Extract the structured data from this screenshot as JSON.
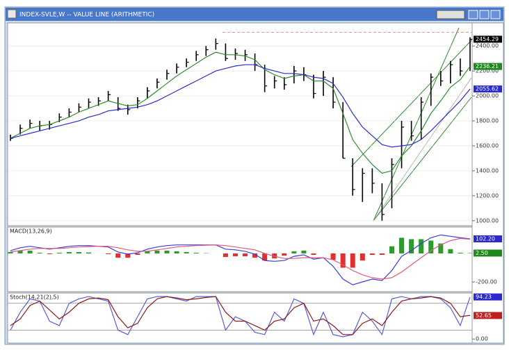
{
  "chart_data": [
    {
      "type": "hlc",
      "title": "INDEX-SVLE,W -- VALUE LINE (ARITHMETIC)",
      "ylim": [
        960,
        2585
      ],
      "yticks": [
        {
          "value": 1000,
          "label": "1000.00"
        },
        {
          "value": 1200,
          "label": "1200.00"
        },
        {
          "value": 1400,
          "label": "1400.00"
        },
        {
          "value": 1600,
          "label": "1600.00"
        },
        {
          "value": 1800,
          "label": "1800.00"
        },
        {
          "value": 2000,
          "label": "2000.00"
        },
        {
          "value": 2200,
          "label": "2200.00"
        },
        {
          "value": 2400,
          "label": "2400.00"
        }
      ],
      "grid": true,
      "color": "#000000",
      "high": [
        1690,
        1770,
        1810,
        1800,
        1800,
        1860,
        1900,
        1940,
        1980,
        1990,
        2040,
        1990,
        1930,
        1990,
        2070,
        2140,
        2210,
        2260,
        2300,
        2360,
        2400,
        2460,
        2420,
        2380,
        2370,
        2340,
        2250,
        2160,
        2150,
        2240,
        2230,
        2170,
        2200,
        2150,
        1950,
        1500,
        1420,
        1420,
        1300,
        1500,
        1800,
        1800,
        1990,
        2180,
        2200,
        2280,
        2300,
        2470
      ],
      "low": [
        1640,
        1690,
        1740,
        1720,
        1730,
        1790,
        1830,
        1870,
        1900,
        1920,
        1960,
        1880,
        1850,
        1900,
        1980,
        2060,
        2130,
        2180,
        2230,
        2280,
        2320,
        2370,
        2280,
        2290,
        2280,
        2200,
        2030,
        2060,
        2050,
        2100,
        2120,
        1980,
        2000,
        1900,
        1500,
        1200,
        1150,
        1220,
        1000,
        1100,
        1420,
        1640,
        1650,
        1920,
        2080,
        2100,
        2160,
        2200
      ],
      "close": [
        1660,
        1740,
        1780,
        1760,
        1770,
        1830,
        1870,
        1910,
        1950,
        1960,
        2010,
        1900,
        1890,
        1960,
        2040,
        2110,
        2180,
        2230,
        2270,
        2330,
        2370,
        2420,
        2300,
        2340,
        2330,
        2250,
        2080,
        2120,
        2090,
        2200,
        2170,
        2020,
        2150,
        1950,
        1500,
        1250,
        1380,
        1300,
        1050,
        1450,
        1750,
        1680,
        1950,
        2150,
        2120,
        2250,
        2200,
        2454
      ],
      "series": [
        {
          "color": "#2e8b2e",
          "values": [
            1660,
            1700,
            1740,
            1760,
            1770,
            1800,
            1830,
            1870,
            1900,
            1930,
            1960,
            1940,
            1920,
            1930,
            1980,
            2040,
            2100,
            2160,
            2210,
            2260,
            2310,
            2350,
            2330,
            2330,
            2320,
            2290,
            2210,
            2170,
            2140,
            2160,
            2170,
            2120,
            2120,
            2060,
            1860,
            1650,
            1540,
            1450,
            1380,
            1400,
            1520,
            1600,
            1720,
            1860,
            1960,
            2070,
            2130,
            2236
          ]
        },
        {
          "color": "#2a2ad0",
          "values": [
            1660,
            1680,
            1700,
            1720,
            1740,
            1760,
            1780,
            1800,
            1830,
            1850,
            1880,
            1890,
            1900,
            1910,
            1930,
            1960,
            2000,
            2040,
            2080,
            2120,
            2160,
            2200,
            2220,
            2240,
            2250,
            2250,
            2220,
            2200,
            2180,
            2180,
            2170,
            2150,
            2140,
            2100,
            1990,
            1860,
            1750,
            1680,
            1610,
            1590,
            1600,
            1610,
            1650,
            1720,
            1800,
            1880,
            1960,
            2055
          ]
        }
      ],
      "hlines": [
        {
          "value": 2510,
          "color": "#e07070"
        }
      ],
      "tags": [
        {
          "value": 2454.29,
          "color": "#000000"
        },
        {
          "value": 2236.21,
          "color": "#1e8a1e"
        },
        {
          "value": 2055.62,
          "color": "#2a2ad0"
        }
      ]
    },
    {
      "type": "macd",
      "title": "MACD(13,26,9)",
      "ylim": [
        -268,
        185
      ],
      "yticks": [
        {
          "value": -200,
          "label": "-200.00"
        }
      ],
      "series": [
        {
          "color": "#3a3ae0",
          "values": [
            20,
            40,
            50,
            40,
            30,
            40,
            50,
            55,
            55,
            50,
            45,
            10,
            -5,
            5,
            30,
            45,
            55,
            60,
            60,
            60,
            60,
            60,
            30,
            25,
            15,
            -5,
            -50,
            -55,
            -50,
            -20,
            -10,
            -40,
            -30,
            -90,
            -180,
            -220,
            -200,
            -180,
            -190,
            -120,
            -20,
            20,
            70,
            110,
            130,
            120,
            110,
            102
          ]
        },
        {
          "color": "#e05a7a",
          "values": [
            10,
            20,
            30,
            35,
            35,
            35,
            40,
            45,
            48,
            50,
            50,
            40,
            25,
            15,
            15,
            25,
            35,
            45,
            50,
            55,
            58,
            60,
            55,
            45,
            35,
            25,
            0,
            -20,
            -35,
            -35,
            -30,
            -30,
            -30,
            -45,
            -80,
            -120,
            -150,
            -170,
            -180,
            -170,
            -130,
            -80,
            -30,
            20,
            60,
            90,
            105,
            100
          ]
        }
      ],
      "histogram": [
        10,
        20,
        20,
        5,
        -5,
        5,
        10,
        10,
        7,
        0,
        -5,
        -30,
        -30,
        -10,
        15,
        20,
        20,
        15,
        10,
        5,
        2,
        0,
        -25,
        -20,
        -20,
        -30,
        -50,
        -35,
        -15,
        15,
        20,
        -10,
        0,
        -45,
        -100,
        -100,
        -50,
        -10,
        -10,
        50,
        110,
        100,
        100,
        90,
        70,
        30,
        5,
        2.5
      ],
      "histogram_colors": [
        "#2e9a2e",
        "#e03030"
      ],
      "tags": [
        {
          "value": 102.2,
          "label": "102.20",
          "color": "#2a2ad0"
        },
        {
          "value": 2.5,
          "label": "2.50",
          "color": "#1e8a1e"
        }
      ]
    },
    {
      "type": "stoch",
      "title": "Stoch(14,21(2),5)",
      "ylim": [
        -9,
        103
      ],
      "yticks": [
        {
          "value": 0,
          "label": "0.00"
        }
      ],
      "hlines": [
        {
          "value": 20,
          "color": "#888888"
        },
        {
          "value": 80,
          "color": "#888888"
        }
      ],
      "series": [
        {
          "color": "#5a5ad8",
          "values": [
            20,
            60,
            90,
            85,
            40,
            30,
            80,
            90,
            95,
            90,
            85,
            20,
            10,
            50,
            90,
            95,
            95,
            90,
            85,
            95,
            95,
            95,
            20,
            50,
            40,
            15,
            10,
            60,
            40,
            90,
            80,
            10,
            60,
            10,
            5,
            10,
            60,
            40,
            10,
            90,
            95,
            90,
            95,
            95,
            90,
            70,
            30,
            94
          ]
        },
        {
          "color": "#8b1a1a",
          "values": [
            30,
            45,
            75,
            85,
            65,
            45,
            60,
            80,
            90,
            92,
            88,
            50,
            25,
            35,
            70,
            90,
            95,
            92,
            88,
            90,
            93,
            95,
            60,
            40,
            40,
            30,
            20,
            40,
            45,
            70,
            80,
            40,
            45,
            30,
            10,
            10,
            35,
            45,
            30,
            60,
            85,
            90,
            92,
            95,
            92,
            80,
            50,
            53
          ]
        }
      ],
      "tags": [
        {
          "value": 94.23,
          "color": "#2a2ad0"
        },
        {
          "value": 52.65,
          "color": "#c02020"
        }
      ]
    }
  ]
}
